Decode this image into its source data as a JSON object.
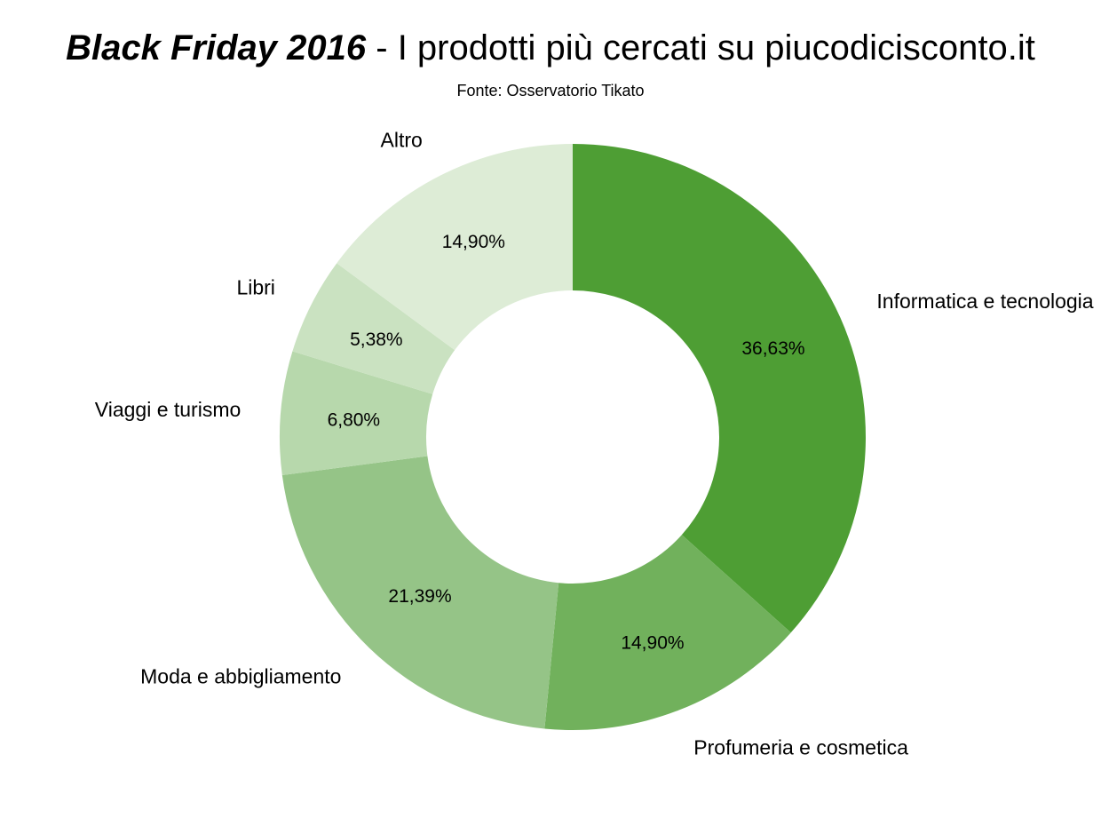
{
  "chart_data": {
    "type": "pie",
    "donut": true,
    "title": "Black Friday 2016 - I prodotti più cercati su piucodicisconto.it",
    "title_bold_part": "Black Friday 2016",
    "title_rest_part": " - I prodotti più cercati su piucodicisconto.it",
    "subtitle": "Fonte: Osservatorio Tikato",
    "start": "top",
    "direction": "clockwise",
    "slices": [
      {
        "label": "Informatica e tecnologia",
        "value": 36.63,
        "value_label": "36,63%",
        "color": "#4e9e34"
      },
      {
        "label": "Profumeria e cosmetica",
        "value": 14.9,
        "value_label": "14,90%",
        "color": "#71b15c"
      },
      {
        "label": "Moda e abbigliamento",
        "value": 21.39,
        "value_label": "21,39%",
        "color": "#95c487"
      },
      {
        "label": "Viaggi e turismo",
        "value": 6.8,
        "value_label": "6,80%",
        "color": "#b7d8ac"
      },
      {
        "label": "Libri",
        "value": 5.38,
        "value_label": "5,38%",
        "color": "#cae2c1"
      },
      {
        "label": "Altro",
        "value": 14.9,
        "value_label": "14,90%",
        "color": "#ddecd6"
      }
    ]
  }
}
